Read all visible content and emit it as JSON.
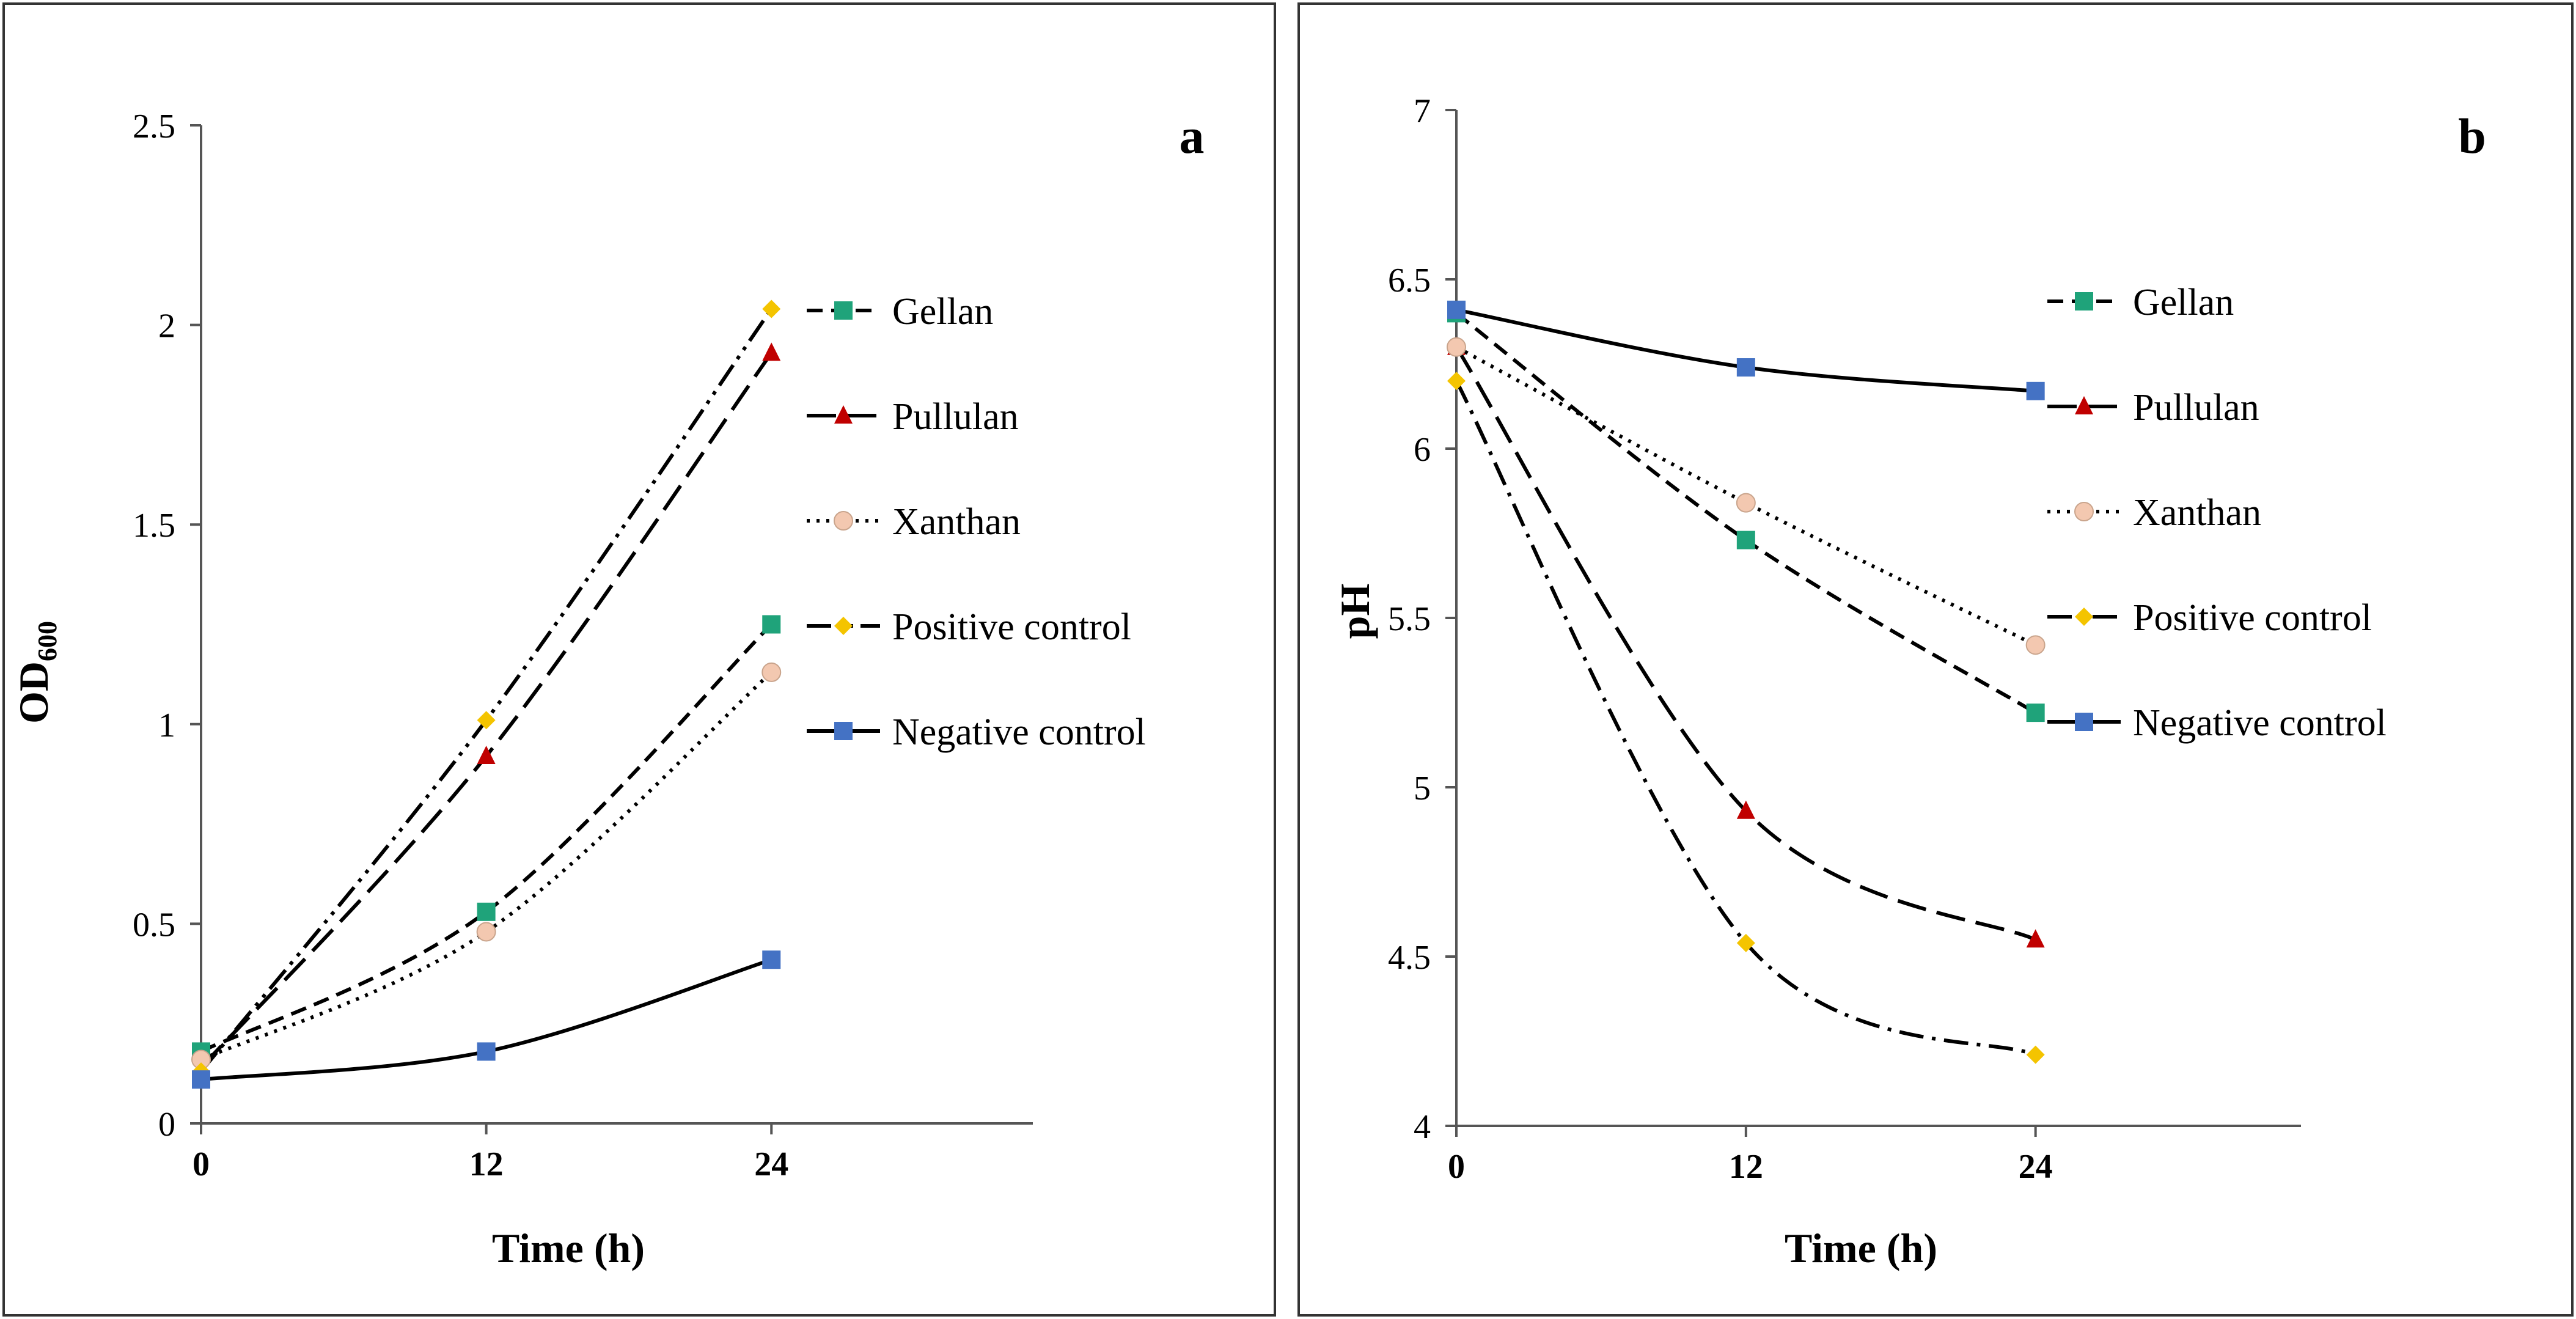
{
  "figure": {
    "panels_desc": "two line charts"
  },
  "chart_data": [
    {
      "type": "line",
      "panel_label": "a",
      "title": "",
      "xlabel": "Time (h)",
      "ylabel_main": "OD",
      "ylabel_sub": "600",
      "x": [
        0,
        12,
        24
      ],
      "xticks": [
        "0",
        "12",
        "24"
      ],
      "xlim": [
        0,
        35
      ],
      "ylim": [
        0,
        2.5
      ],
      "yticks": [
        "0",
        "0.5",
        "1",
        "1.5",
        "2",
        "2.5"
      ],
      "legend_position": "right",
      "series": [
        {
          "name": "Gellan",
          "values": [
            0.18,
            0.53,
            1.25
          ],
          "color": "#1fa37a",
          "marker": "square",
          "dash": "dash"
        },
        {
          "name": "Pullulan",
          "values": [
            0.14,
            0.92,
            1.93
          ],
          "color": "#c00000",
          "marker": "triangle",
          "dash": "longdash"
        },
        {
          "name": "Xanthan",
          "values": [
            0.16,
            0.48,
            1.13
          ],
          "color": "#f3c8b0",
          "marker": "circle",
          "dash": "dot"
        },
        {
          "name": "Positive control",
          "values": [
            0.13,
            1.01,
            2.04
          ],
          "color": "#f4c400",
          "marker": "diamond",
          "dash": "dashdotdot"
        },
        {
          "name": "Negative control",
          "values": [
            0.11,
            0.18,
            0.41
          ],
          "color": "#4472c4",
          "marker": "square",
          "dash": "solid"
        }
      ]
    },
    {
      "type": "line",
      "panel_label": "b",
      "title": "",
      "xlabel": "Time (h)",
      "ylabel_main": "pH",
      "ylabel_sub": "",
      "x": [
        0,
        12,
        24
      ],
      "xticks": [
        "0",
        "12",
        "24"
      ],
      "xlim": [
        0,
        35
      ],
      "ylim": [
        4,
        7
      ],
      "yticks": [
        "4",
        "4.5",
        "5",
        "5.5",
        "6",
        "6.5",
        "7"
      ],
      "legend_position": "right",
      "series": [
        {
          "name": "Gellan",
          "values": [
            6.4,
            5.73,
            5.22
          ],
          "color": "#1fa37a",
          "marker": "square",
          "dash": "dash"
        },
        {
          "name": "Pullulan",
          "values": [
            6.3,
            4.93,
            4.55
          ],
          "color": "#c00000",
          "marker": "triangle",
          "dash": "longdash"
        },
        {
          "name": "Xanthan",
          "values": [
            6.3,
            5.84,
            5.42
          ],
          "color": "#f3c8b0",
          "marker": "circle",
          "dash": "dot"
        },
        {
          "name": "Positive control",
          "values": [
            6.2,
            4.54,
            4.21
          ],
          "color": "#f4c400",
          "marker": "diamond",
          "dash": "dashdot"
        },
        {
          "name": "Negative control",
          "values": [
            6.41,
            6.24,
            6.17
          ],
          "color": "#4472c4",
          "marker": "square",
          "dash": "solid"
        }
      ]
    }
  ]
}
